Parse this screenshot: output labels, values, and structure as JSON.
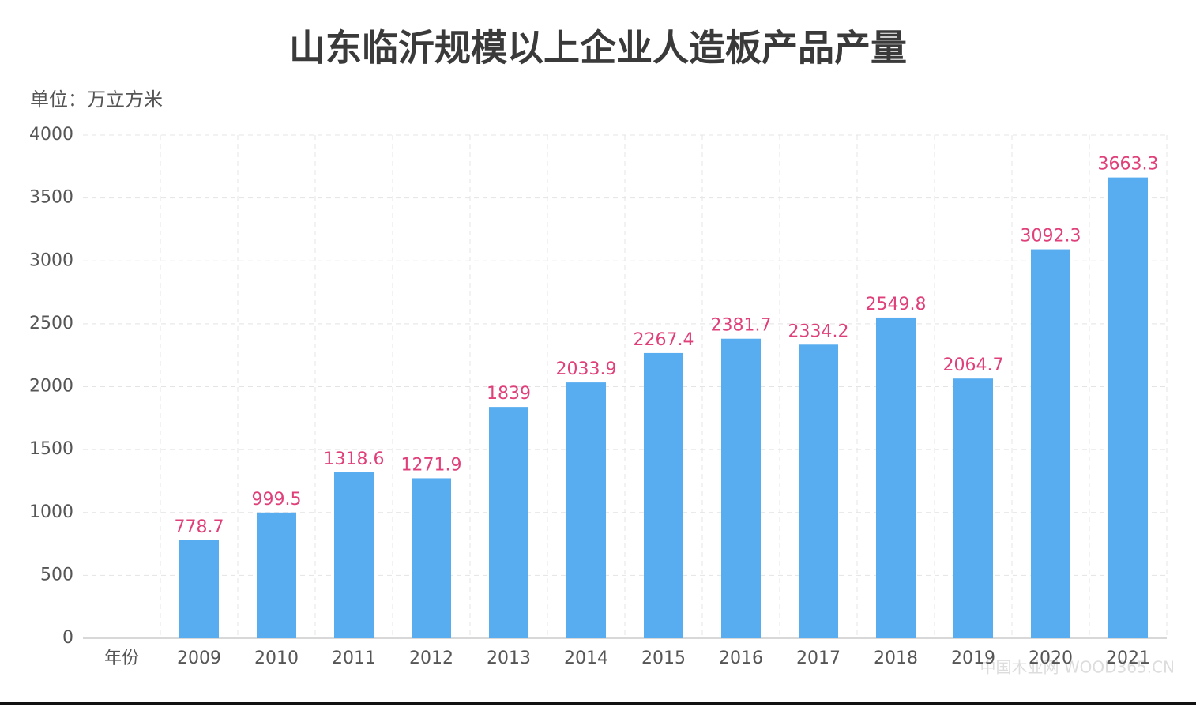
{
  "chart_data": {
    "type": "bar",
    "title": "山东临沂规模以上企业人造板产品产量",
    "ylabel": "单位：万立方米",
    "categories": [
      "年份",
      "2009",
      "2010",
      "2011",
      "2012",
      "2013",
      "2014",
      "2015",
      "2016",
      "2017",
      "2018",
      "2019",
      "2020",
      "2021"
    ],
    "values": [
      null,
      778.7,
      999.5,
      1318.6,
      1271.9,
      1839,
      2033.9,
      2267.4,
      2381.7,
      2334.2,
      2549.8,
      2064.7,
      3092.3,
      3663.3
    ],
    "color": "#58adf0",
    "label_color": "#e0407a",
    "ylim": [
      0,
      4000
    ],
    "yticks": [
      0,
      500,
      1000,
      1500,
      2000,
      2500,
      3000,
      3500,
      4000
    ],
    "grid": true,
    "watermark": "中国木业网 WOOD365.CN"
  }
}
